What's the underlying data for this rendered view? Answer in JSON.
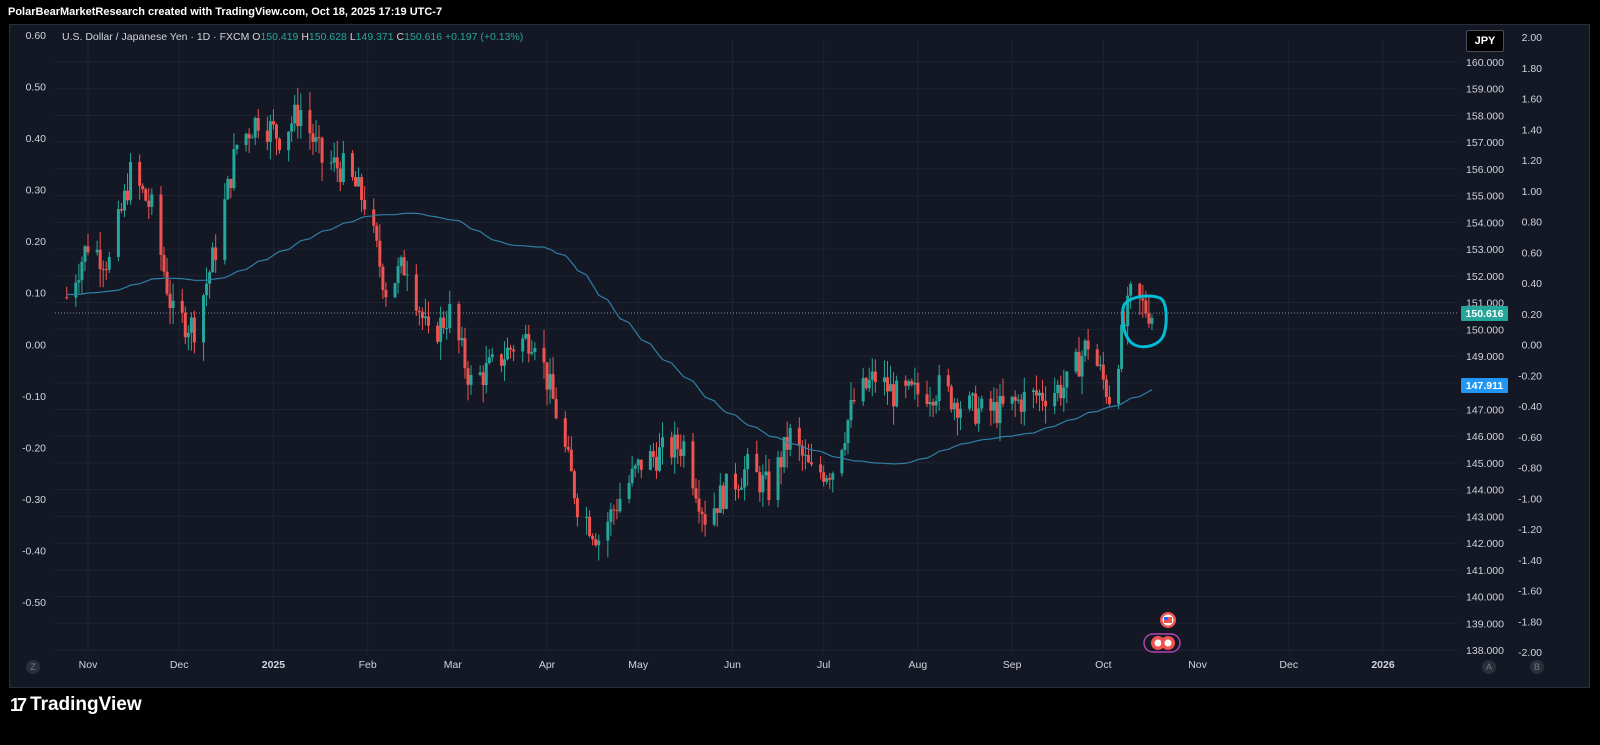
{
  "attribution": "PolarBearMarketResearch created with TradingView.com, Oct 18, 2025 17:19 UTC-7",
  "legend": {
    "symbol": "U.S. Dollar / Japanese Yen · 1D · FXCM",
    "o_label": "O",
    "o_value": "150.419",
    "h_label": "H",
    "h_value": "150.628",
    "l_label": "L",
    "l_value": "149.371",
    "c_label": "C",
    "c_value": "150.616",
    "change": "+0.197 (+0.13%)"
  },
  "currency_button": "JPY",
  "close_tag": "150.616",
  "ma_tag": "147.911",
  "logo_text": "TradingView",
  "corner_left": "Z",
  "corner_a": "A",
  "corner_b": "B",
  "colors": {
    "background": "#141824",
    "up": "#26a69a",
    "down": "#ef5350",
    "ma": "#2f7fa6",
    "grid": "#1f2433",
    "annotation": "#00bcd4"
  },
  "chart_data": {
    "type": "candlestick",
    "title": "U.S. Dollar / Japanese Yen · 1D · FXCM",
    "right_axis_price_ticks": [
      "160.000",
      "159.000",
      "158.000",
      "157.000",
      "156.000",
      "155.000",
      "154.000",
      "153.000",
      "152.000",
      "151.000",
      "150.000",
      "149.000",
      "148.000",
      "147.000",
      "146.000",
      "145.000",
      "144.000",
      "143.000",
      "142.000",
      "141.000",
      "140.000",
      "139.000",
      "138.000"
    ],
    "right_axis_secondary_ticks": [
      "2.00",
      "1.80",
      "1.60",
      "1.40",
      "1.20",
      "1.00",
      "0.80",
      "0.60",
      "0.40",
      "0.20",
      "0.00",
      "-0.20",
      "-0.40",
      "-0.60",
      "-0.80",
      "-1.00",
      "-1.20",
      "-1.40",
      "-1.60",
      "-1.80",
      "-2.00"
    ],
    "left_axis_ticks": [
      "0.60",
      "0.50",
      "0.40",
      "0.30",
      "0.20",
      "0.10",
      "0.00",
      "-0.10",
      "-0.20",
      "-0.30",
      "-0.40",
      "-0.50"
    ],
    "x_axis_labels": [
      "Nov",
      "Dec",
      "2025",
      "Feb",
      "Mar",
      "Apr",
      "May",
      "Jun",
      "Jul",
      "Aug",
      "Sep",
      "Oct",
      "Nov",
      "Dec",
      "2026"
    ],
    "ylim": [
      138,
      160.6
    ],
    "last_close": 150.616,
    "moving_average_last": 147.911,
    "price_path": [
      [
        "2024-10-25",
        151.2
      ],
      [
        "2024-11-01",
        153.2
      ],
      [
        "2024-11-08",
        152.5
      ],
      [
        "2024-11-15",
        155.8
      ],
      [
        "2024-11-22",
        154.5
      ],
      [
        "2024-11-29",
        150.5
      ],
      [
        "2024-12-06",
        150.1
      ],
      [
        "2024-12-13",
        153.0
      ],
      [
        "2024-12-20",
        156.9
      ],
      [
        "2024-12-27",
        157.9
      ],
      [
        "2025-01-03",
        157.2
      ],
      [
        "2025-01-10",
        158.2
      ],
      [
        "2025-01-17",
        156.3
      ],
      [
        "2025-01-24",
        156.0
      ],
      [
        "2025-01-31",
        154.8
      ],
      [
        "2025-02-07",
        151.5
      ],
      [
        "2025-02-14",
        152.5
      ],
      [
        "2025-02-21",
        149.6
      ],
      [
        "2025-02-28",
        150.6
      ],
      [
        "2025-03-07",
        148.0
      ],
      [
        "2025-03-14",
        148.6
      ],
      [
        "2025-03-21",
        149.4
      ],
      [
        "2025-03-28",
        149.8
      ],
      [
        "2025-04-04",
        146.9
      ],
      [
        "2025-04-11",
        143.5
      ],
      [
        "2025-04-18",
        142.2
      ],
      [
        "2025-04-25",
        143.7
      ],
      [
        "2025-05-02",
        145.0
      ],
      [
        "2025-05-09",
        145.4
      ],
      [
        "2025-05-16",
        145.7
      ],
      [
        "2025-05-23",
        143.0
      ],
      [
        "2025-05-30",
        144.0
      ],
      [
        "2025-06-06",
        144.8
      ],
      [
        "2025-06-13",
        144.0
      ],
      [
        "2025-06-20",
        146.0
      ],
      [
        "2025-06-27",
        144.6
      ],
      [
        "2025-07-04",
        144.8
      ],
      [
        "2025-07-11",
        147.3
      ],
      [
        "2025-07-18",
        148.2
      ],
      [
        "2025-07-25",
        147.5
      ],
      [
        "2025-08-01",
        147.6
      ],
      [
        "2025-08-08",
        147.8
      ],
      [
        "2025-08-15",
        147.2
      ],
      [
        "2025-08-22",
        146.9
      ],
      [
        "2025-08-29",
        147.0
      ],
      [
        "2025-09-05",
        147.4
      ],
      [
        "2025-09-12",
        147.6
      ],
      [
        "2025-09-19",
        147.9
      ],
      [
        "2025-09-26",
        149.5
      ],
      [
        "2025-10-03",
        147.5
      ],
      [
        "2025-10-10",
        151.2
      ],
      [
        "2025-10-17",
        150.6
      ]
    ]
  }
}
